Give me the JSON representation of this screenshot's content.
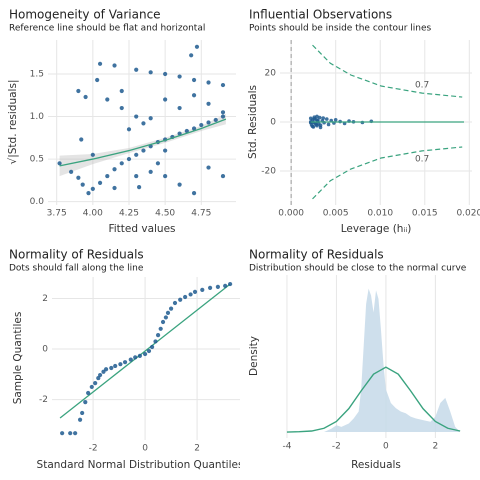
{
  "chart_data": [
    {
      "type": "scatter",
      "title": "Homogeneity of Variance",
      "subtitle": "Reference line should be flat and horizontal",
      "xlabel": "Fitted values",
      "ylabel": "√|Std. residuals|",
      "color": "#1f5b8f",
      "x": [
        3.77,
        3.85,
        3.9,
        3.93,
        3.97,
        4.0,
        4.05,
        4.1,
        4.15,
        4.2,
        4.25,
        4.3,
        4.35,
        4.4,
        4.45,
        4.5,
        4.55,
        4.6,
        4.65,
        4.7,
        4.75,
        4.8,
        4.85,
        4.9,
        4.3,
        4.4,
        4.5,
        4.6,
        4.7,
        4.8,
        4.9,
        4.1,
        4.2,
        4.3,
        4.4,
        4.5,
        4.6,
        4.7,
        4.8,
        4.9,
        4.3,
        4.4,
        4.5,
        4.6,
        4.7,
        4.8,
        4.9,
        3.9,
        3.95,
        4.03,
        4.05,
        4.15,
        4.2,
        3.92,
        4.0,
        4.68,
        4.72,
        4.25,
        4.35,
        4.45,
        4.5,
        4.15,
        4.32
      ],
      "values": [
        0.45,
        0.35,
        0.28,
        0.2,
        0.1,
        0.15,
        0.22,
        0.3,
        0.38,
        0.45,
        0.5,
        0.55,
        0.6,
        0.65,
        0.7,
        0.73,
        0.76,
        0.8,
        0.83,
        0.86,
        0.9,
        0.93,
        0.96,
        1.0,
        1.55,
        1.52,
        1.5,
        1.47,
        1.43,
        1.4,
        1.37,
        1.2,
        1.1,
        1.0,
        0.98,
        1.2,
        1.1,
        1.25,
        1.15,
        1.05,
        0.3,
        0.35,
        0.3,
        0.2,
        0.1,
        0.4,
        0.3,
        1.3,
        1.23,
        1.43,
        1.62,
        1.6,
        1.3,
        0.73,
        0.55,
        1.72,
        1.82,
        0.85,
        0.92,
        0.45,
        0.6,
        0.16,
        0.17
      ],
      "fit": {
        "color": "#3aa37f",
        "x": [
          3.77,
          4.0,
          4.25,
          4.5,
          4.75,
          4.92
        ],
        "values": [
          0.42,
          0.5,
          0.6,
          0.72,
          0.86,
          0.97
        ],
        "lower": [
          0.3,
          0.44,
          0.57,
          0.69,
          0.83,
          0.91
        ],
        "upper": [
          0.54,
          0.56,
          0.63,
          0.75,
          0.89,
          1.03
        ]
      },
      "xlim": [
        3.69,
        4.99
      ],
      "xticks": [
        3.75,
        {
          "value": 4.0,
          "label": "4.00"
        },
        4.25,
        {
          "value": 4.5,
          "label": "4.50"
        },
        4.75
      ],
      "ylim": [
        -0.04,
        1.9
      ],
      "yticks": [
        {
          "value": 0,
          "label": "0.0"
        },
        {
          "value": 0.5,
          "label": "0.5"
        },
        {
          "value": 1,
          "label": "1.0"
        },
        {
          "value": 1.5,
          "label": "1.5"
        }
      ],
      "grid": true
    },
    {
      "type": "influence",
      "title": "Influential Observations",
      "subtitle": "Points should be inside the contour lines",
      "xlabel": "Leverage (hᵢᵢ)",
      "ylabel": "Std. Residuals",
      "color": "#1f5b8f",
      "x": [
        0.0022,
        0.0023,
        0.0024,
        0.0025,
        0.0026,
        0.0027,
        0.0028,
        0.0029,
        0.003,
        0.0031,
        0.0032,
        0.0033,
        0.0035,
        0.0037,
        0.004,
        0.0042,
        0.0045,
        0.0048,
        0.005,
        0.0055,
        0.006,
        0.0065,
        0.007,
        0.008,
        0.009,
        0.0022,
        0.0024,
        0.0026,
        0.0028,
        0.003,
        0.0033,
        0.0036,
        0.0022,
        0.0025,
        0.0029
      ],
      "values": [
        1.5,
        -1.2,
        0.8,
        -2,
        2,
        -0.5,
        1,
        -1.5,
        0.3,
        -0.8,
        1.8,
        -2.2,
        0.5,
        -0.3,
        1.2,
        -1,
        0.6,
        -0.4,
        0.9,
        0.2,
        -0.6,
        0.4,
        0.1,
        -0.2,
        0.3,
        -0.3,
        -1.8,
        1.3,
        -1,
        0.7,
        -1.3,
        1.6,
        0.1,
        -0.2,
        2.3
      ],
      "hline": 0,
      "vline": 0,
      "line_color": "#3aa37f",
      "contours": [
        {
          "label": "0.7",
          "x": [
            0.0024,
            0.0044,
            0.0067,
            0.0101,
            0.0147,
            0.0192
          ],
          "values": [
            31.4,
            24,
            19.2,
            14.7,
            11.8,
            10.2
          ]
        },
        {
          "label": "0.7",
          "x": [
            0.0024,
            0.0044,
            0.0067,
            0.0101,
            0.0147,
            0.0192
          ],
          "values": [
            -31.4,
            -24,
            -19.2,
            -14.7,
            -11.8,
            -10.2
          ]
        }
      ],
      "xlim": [
        -0.00125,
        0.0203
      ],
      "xticks": [
        {
          "value": 0,
          "label": "0.000"
        },
        0.005,
        {
          "value": 0.01,
          "label": "0.010"
        },
        0.015,
        {
          "value": 0.02,
          "label": "0.020"
        }
      ],
      "ylim": [
        -33.9,
        33.5
      ],
      "yticks": [
        -20,
        0,
        20
      ],
      "grid": true
    },
    {
      "type": "qq",
      "title": "Normality of Residuals",
      "subtitle": "Dots should fall along the line",
      "xlabel": "Standard Normal Distribution Quantiles",
      "ylabel": "Sample Quantiles",
      "color": "#1f5b8f",
      "x": [
        -3.19,
        -2.88,
        -2.69,
        -2.5,
        -2.42,
        -2.3,
        -2.19,
        -2.05,
        -1.92,
        -1.8,
        -1.73,
        -1.6,
        -1.5,
        -1.3,
        -1.15,
        -0.95,
        -0.77,
        -0.55,
        -0.38,
        -0.2,
        0,
        0.15,
        0.27,
        0.4,
        0.5,
        0.6,
        0.69,
        0.8,
        0.88,
        1.0,
        1.15,
        1.35,
        1.54,
        1.75,
        1.92,
        2.2,
        2.5,
        2.8,
        3.08,
        3.27
      ],
      "values": [
        -3.33,
        -3.33,
        -3.33,
        -2.8,
        -2.53,
        -2.1,
        -1.74,
        -1.5,
        -1.35,
        -1.15,
        -1.03,
        -0.9,
        -0.8,
        -0.75,
        -0.67,
        -0.6,
        -0.52,
        -0.42,
        -0.33,
        -0.27,
        -0.2,
        -0.08,
        0.08,
        0.3,
        0.55,
        0.8,
        1.07,
        1.25,
        1.43,
        1.6,
        1.82,
        1.95,
        2.06,
        2.16,
        2.26,
        2.34,
        2.42,
        2.46,
        2.5,
        2.57
      ],
      "reference": {
        "color": "#3aa37f",
        "x": [
          -3.27,
          3.27
        ],
        "values": [
          -2.73,
          2.57
        ]
      },
      "xlim": [
        -3.58,
        3.65
      ],
      "xticks": [
        -2,
        0,
        2
      ],
      "ylim": [
        -3.6,
        2.85
      ],
      "yticks": [
        -2,
        0,
        2
      ],
      "grid": true
    },
    {
      "type": "density",
      "title": "Normality of Residuals",
      "subtitle": "Distribution should be close to the normal curve",
      "xlabel": "Residuals",
      "ylabel": "Density",
      "color": "#c6d9e9",
      "x": [
        -2.5,
        -2.2,
        -2.0,
        -1.8,
        -1.5,
        -1.3,
        -1.1,
        -1.0,
        -0.9,
        -0.8,
        -0.7,
        -0.6,
        -0.5,
        -0.4,
        -0.3,
        -0.2,
        -0.1,
        0,
        0.2,
        0.4,
        0.6,
        0.8,
        1.0,
        1.2,
        1.5,
        1.8,
        2.0,
        2.2,
        2.4,
        2.6,
        2.8,
        3.0
      ],
      "values": [
        0,
        0.02,
        0.04,
        0.03,
        0.05,
        0.08,
        0.12,
        0.25,
        0.5,
        0.75,
        0.84,
        0.8,
        0.7,
        0.83,
        0.78,
        0.6,
        0.4,
        0.25,
        0.17,
        0.14,
        0.12,
        0.11,
        0.09,
        0.08,
        0.07,
        0.06,
        0.09,
        0.17,
        0.2,
        0.12,
        0.03,
        0
      ],
      "normal": {
        "color": "#3aa37f",
        "x": [
          -4,
          -3.5,
          -3,
          -2.5,
          -2,
          -1.5,
          -1,
          -0.5,
          0,
          0.5,
          1,
          1.5,
          2,
          2.5,
          3
        ],
        "values": [
          0,
          0.002,
          0.006,
          0.022,
          0.062,
          0.137,
          0.241,
          0.339,
          0.38,
          0.339,
          0.241,
          0.137,
          0.062,
          0.022,
          0.006
        ]
      },
      "xlim": [
        -4.2,
        3.48
      ],
      "xticks": [
        -4,
        -2,
        0,
        2
      ],
      "ylim": [
        -0.035,
        0.92
      ],
      "grid": true
    }
  ]
}
